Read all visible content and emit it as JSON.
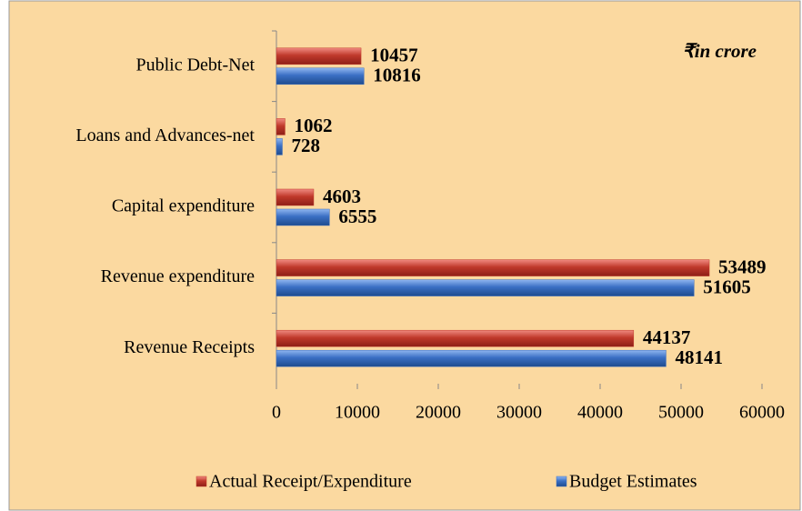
{
  "chart_data": {
    "type": "hbar",
    "annotation": "₹in crore",
    "categories": [
      "Public Debt-Net",
      "Loans and Advances-net",
      "Capital expenditure",
      "Revenue expenditure",
      "Revenue Receipts"
    ],
    "series": [
      {
        "name": "Actual Receipt/Expenditure",
        "color": "#c0392b",
        "values": [
          10457,
          1062,
          4603,
          53489,
          44137
        ]
      },
      {
        "name": "Budget Estimates",
        "color": "#3a6fc4",
        "values": [
          10816,
          728,
          6555,
          51605,
          48141
        ]
      }
    ],
    "xlim": [
      0,
      60000
    ],
    "xticks": [
      0,
      10000,
      20000,
      30000,
      40000,
      50000,
      60000
    ],
    "legend": "bottom",
    "grid": false
  }
}
